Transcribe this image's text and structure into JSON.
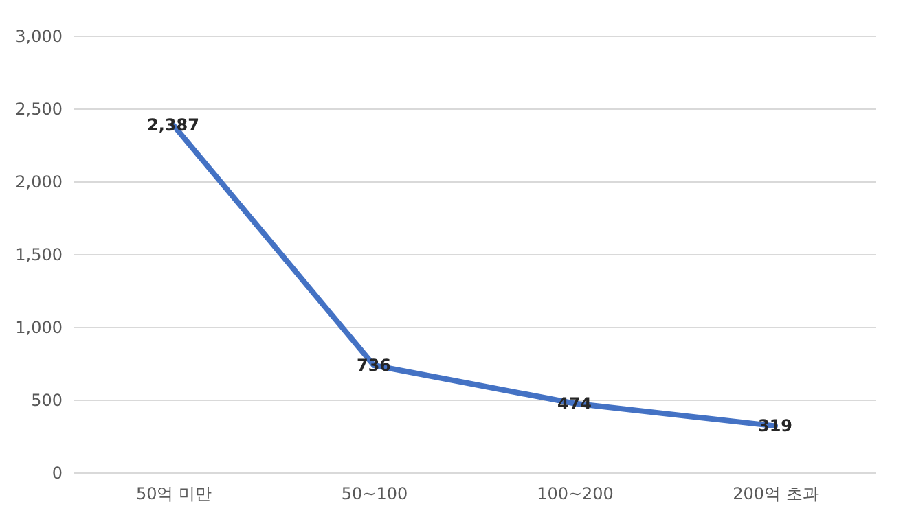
{
  "chart_data": {
    "type": "line",
    "categories": [
      "50억 미만",
      "50~100",
      "100~200",
      "200억 초과"
    ],
    "series": [
      {
        "color": "#4472c4",
        "values": [
          2387,
          736,
          474,
          319
        ],
        "value_labels": [
          "2,387",
          "736",
          "474",
          "319"
        ]
      }
    ],
    "ylim": [
      0,
      3000
    ],
    "yticks": [
      0,
      500,
      {
        "value": 1000,
        "label": "1,000"
      },
      {
        "value": 1500,
        "label": "1,500"
      },
      {
        "value": 2000,
        "label": "2,000"
      },
      {
        "value": 2500,
        "label": "2,500"
      },
      {
        "value": 3000,
        "label": "3,000"
      }
    ],
    "grid": "y"
  }
}
